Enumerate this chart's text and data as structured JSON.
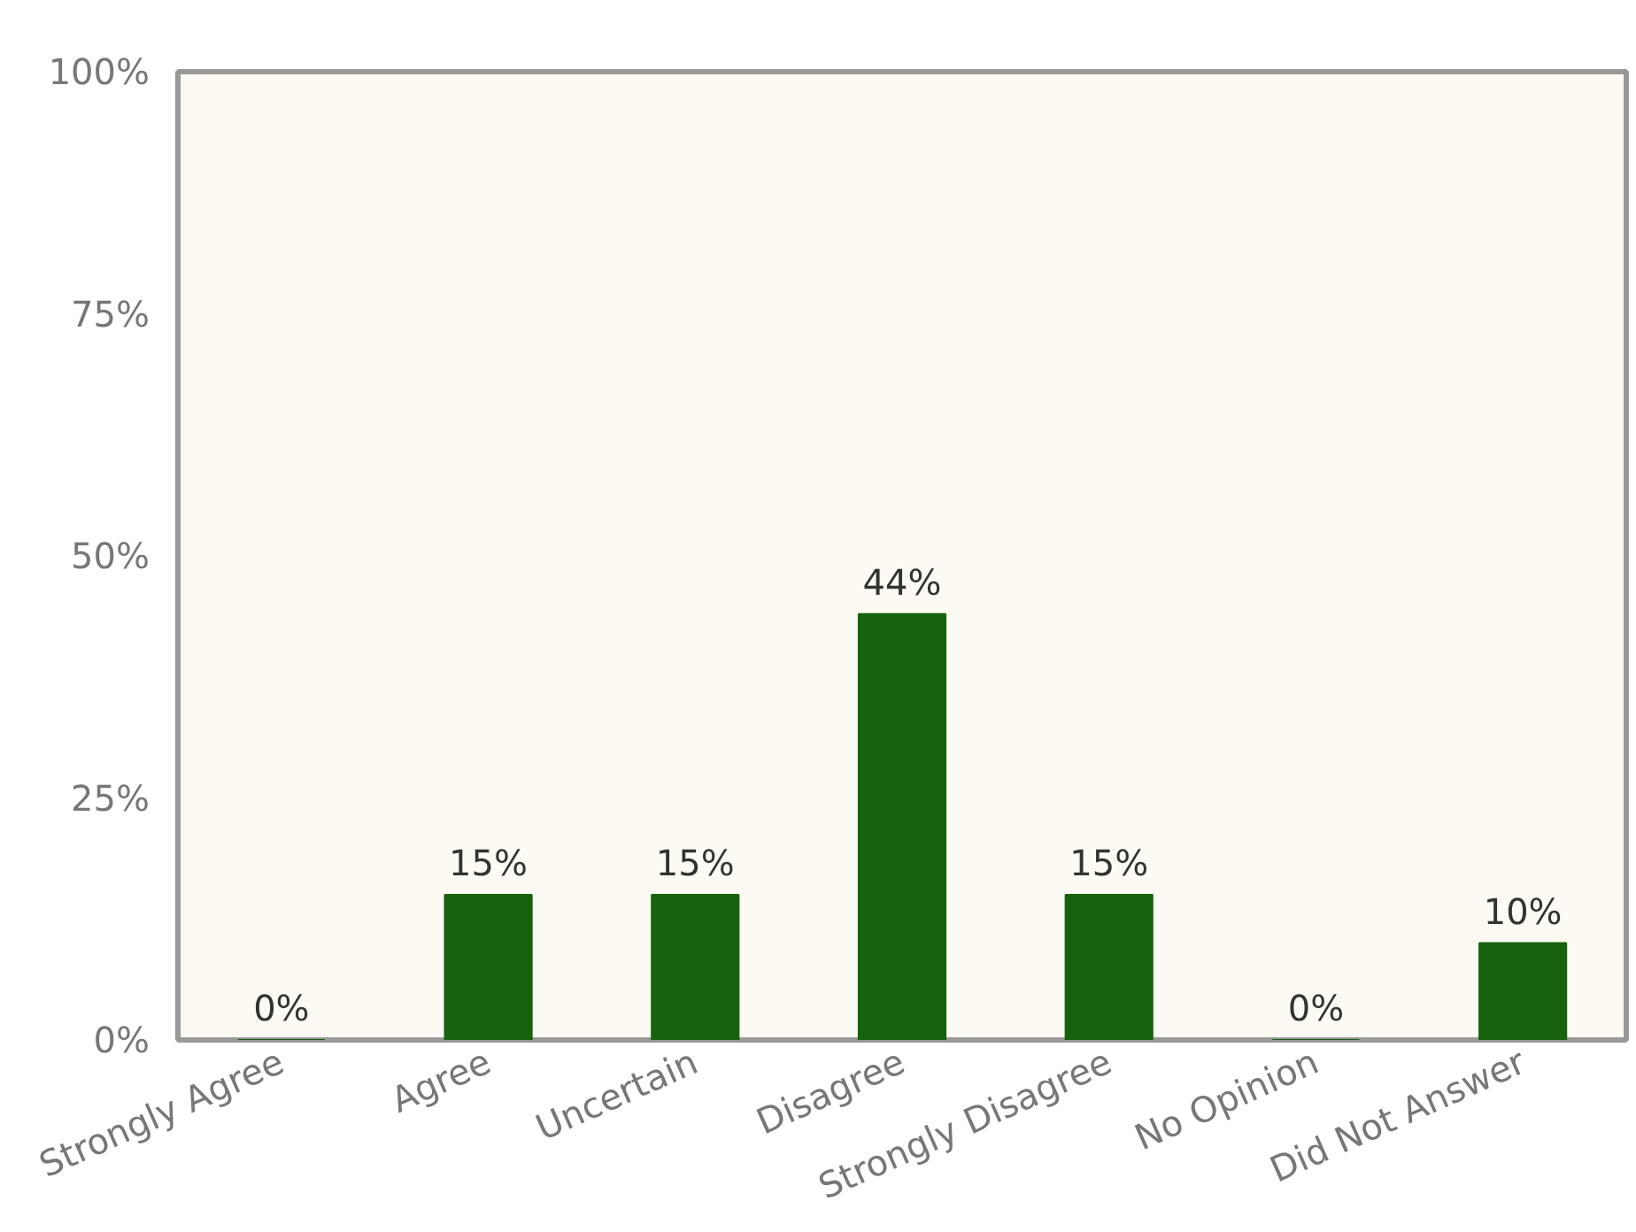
{
  "chart_data": {
    "type": "bar",
    "categories": [
      "Strongly Agree",
      "Agree",
      "Uncertain",
      "Disagree",
      "Strongly Disagree",
      "No Opinion",
      "Did Not Answer"
    ],
    "values": [
      0,
      15,
      15,
      44,
      15,
      0,
      10
    ],
    "value_labels": [
      "0%",
      "15%",
      "15%",
      "44%",
      "15%",
      "0%",
      "10%"
    ],
    "color": "#17620d",
    "ylim": [
      0,
      100
    ],
    "yticks": [
      {
        "value": 0,
        "label": "0%"
      },
      {
        "value": 25,
        "label": "25%"
      },
      {
        "value": 50,
        "label": "50%"
      },
      {
        "value": 75,
        "label": "75%"
      },
      {
        "value": 100,
        "label": "100%"
      }
    ]
  }
}
